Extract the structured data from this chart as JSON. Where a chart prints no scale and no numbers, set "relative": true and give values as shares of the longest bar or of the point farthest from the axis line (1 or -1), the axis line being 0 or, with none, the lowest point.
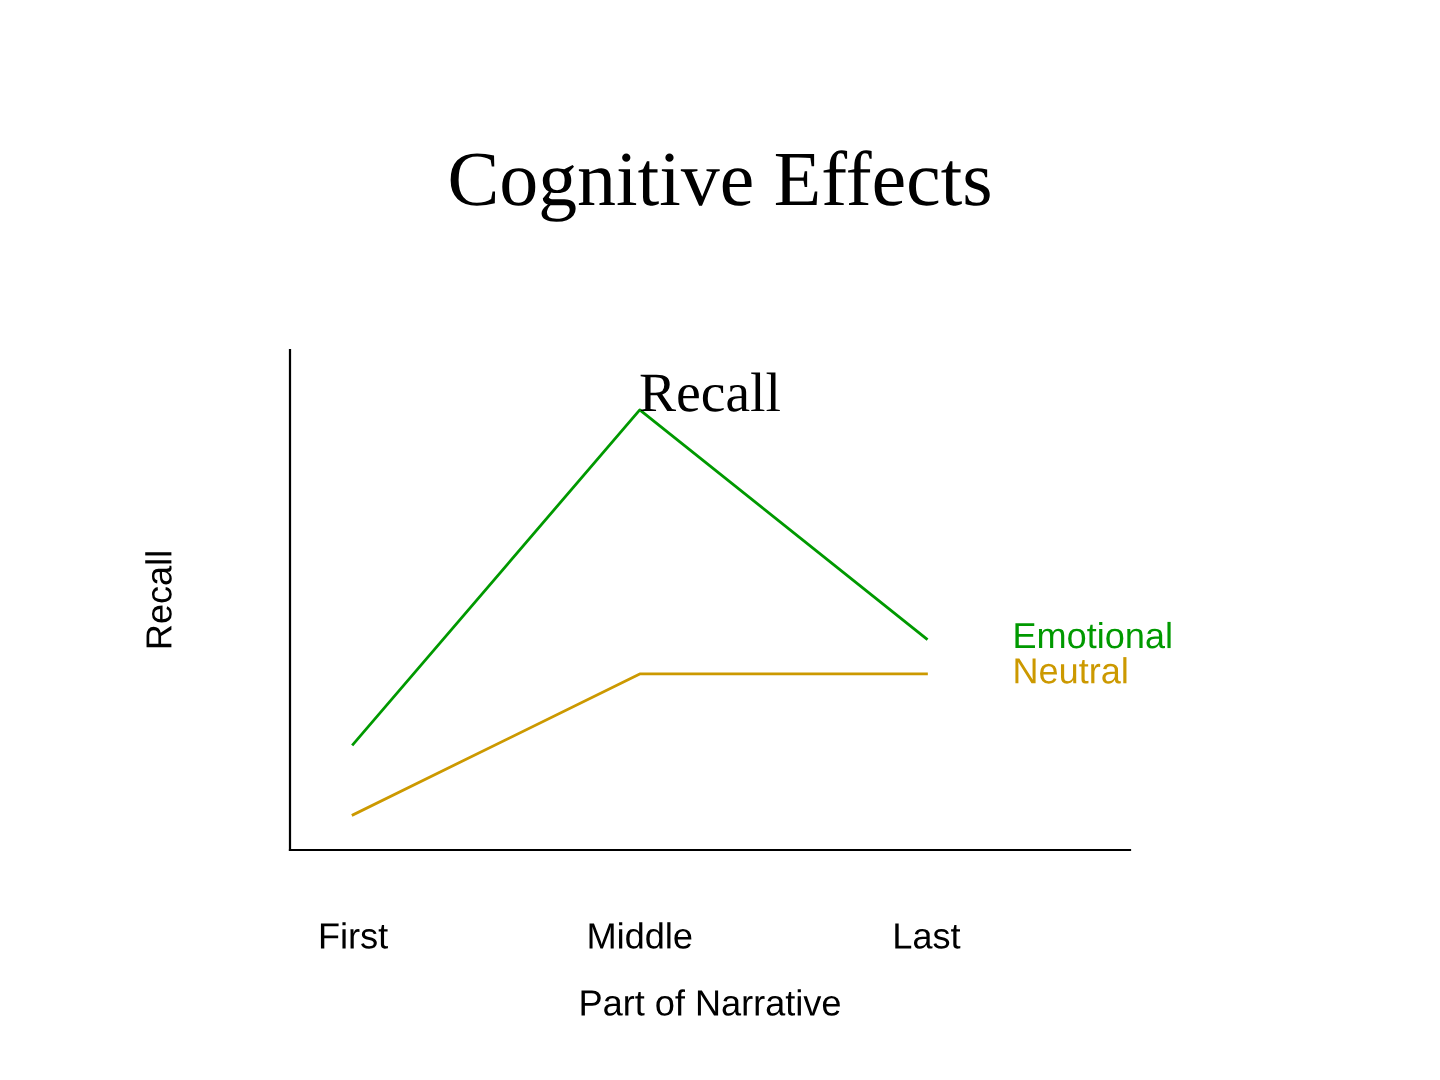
{
  "chart_data": {
    "type": "line",
    "title": "Cognitive Effects",
    "subtitle": "Recall",
    "xlabel": "Part of Narrative",
    "ylabel": "Recall",
    "categories": [
      "First",
      "Middle",
      "Last"
    ],
    "relative": true,
    "series": [
      {
        "name": "Emotional",
        "color": "#009900",
        "values": [
          0.24,
          1,
          0.48
        ]
      },
      {
        "name": "Neutral",
        "color": "#cc9900",
        "values": [
          0.08,
          0.4,
          0.4
        ]
      }
    ],
    "grid": false,
    "legend": false
  }
}
